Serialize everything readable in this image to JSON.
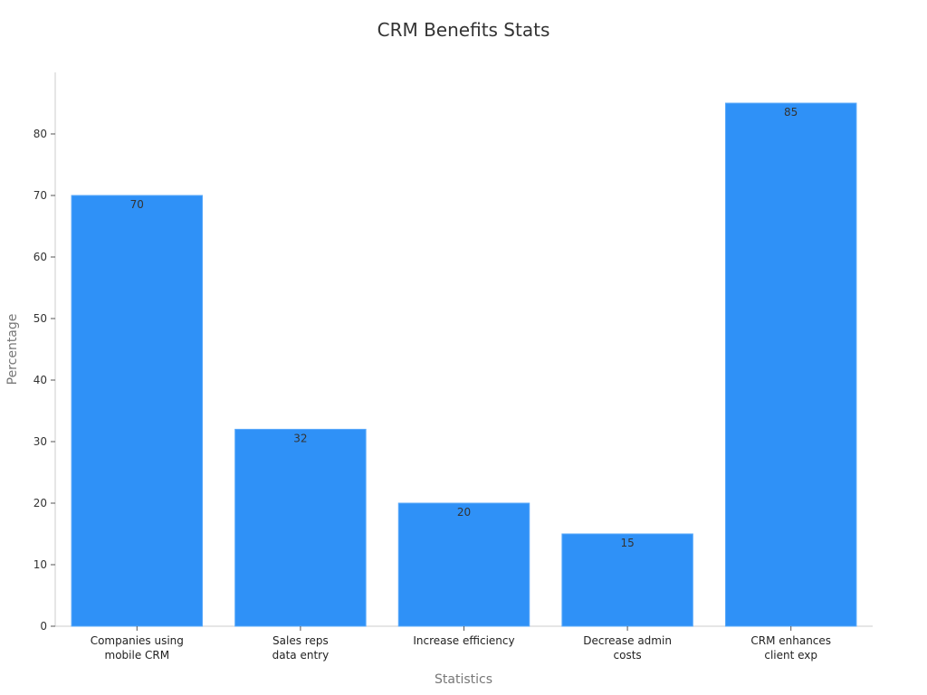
{
  "chart_data": {
    "type": "bar",
    "title": "CRM Benefits Stats",
    "xlabel": "Statistics",
    "ylabel": "Percentage",
    "categories": [
      [
        "Companies using",
        "mobile CRM"
      ],
      [
        "Sales reps",
        "data entry"
      ],
      [
        "Increase efficiency"
      ],
      [
        "Decrease admin",
        "costs"
      ],
      [
        "CRM enhances",
        "client exp"
      ]
    ],
    "values": [
      70,
      32,
      20,
      15,
      85
    ],
    "ylim": [
      0,
      90
    ],
    "yticks": [
      0,
      10,
      20,
      30,
      40,
      50,
      60,
      70,
      80
    ],
    "grid": false,
    "bar_color": "#2f91f7"
  }
}
